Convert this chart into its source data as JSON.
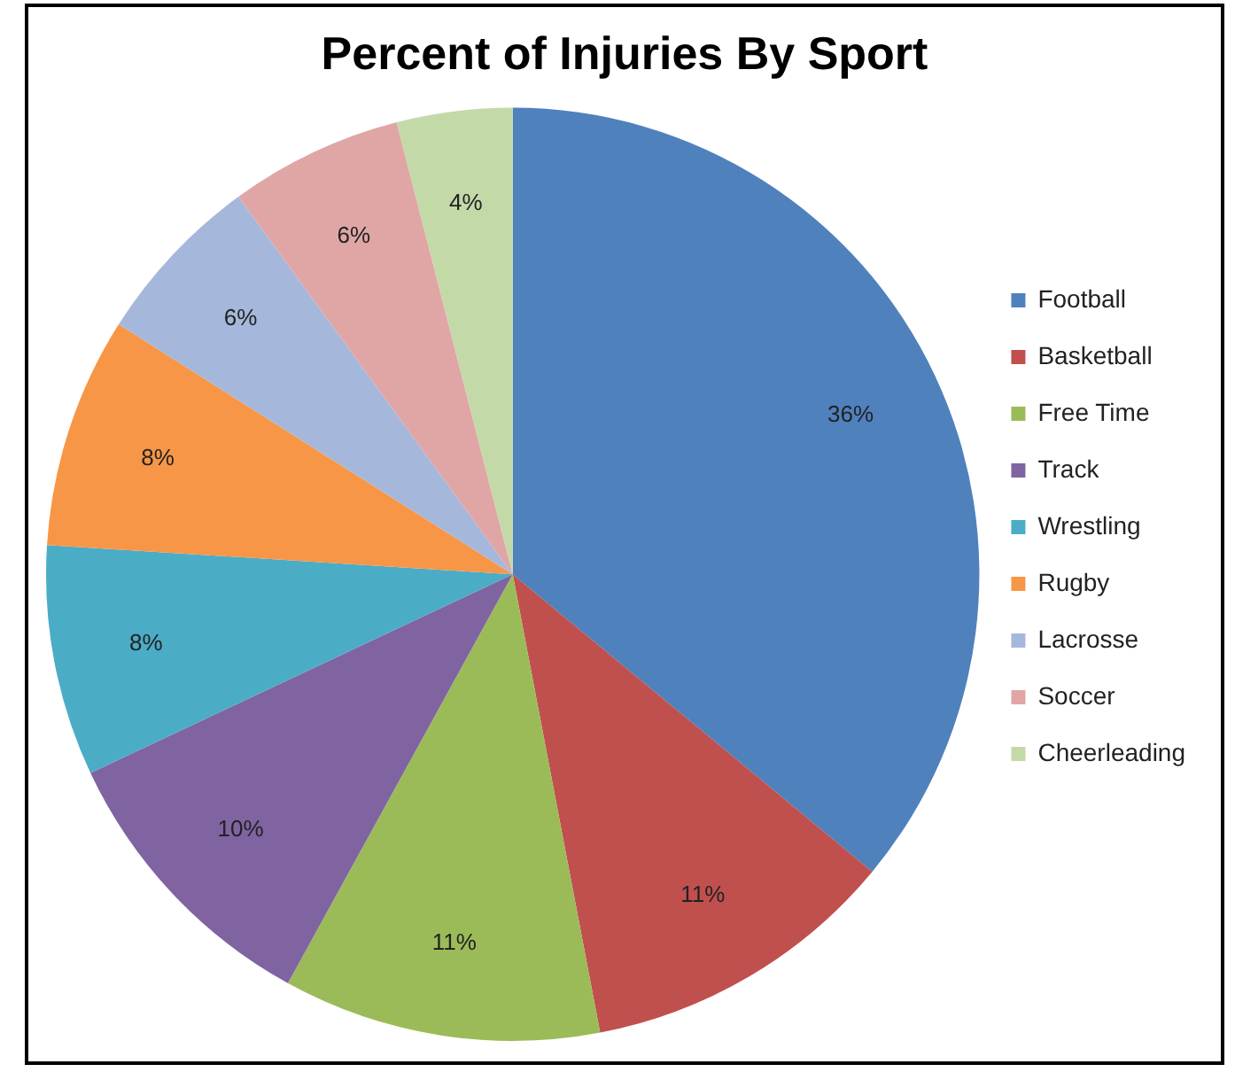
{
  "chart_data": {
    "type": "pie",
    "title": "Percent of Injuries By Sport",
    "categories": [
      "Football",
      "Basketball",
      "Free Time",
      "Track",
      "Wrestling",
      "Rugby",
      "Lacrosse",
      "Soccer",
      "Cheerleading"
    ],
    "values": [
      36,
      11,
      11,
      10,
      8,
      8,
      6,
      6,
      4
    ],
    "colors": [
      "#4f81bd",
      "#c0504d",
      "#9bbb59",
      "#8064a2",
      "#4bacc6",
      "#f79646",
      "#a5b8dc",
      "#e0a6a6",
      "#c4d9a8"
    ],
    "value_labels": [
      "36%",
      "11%",
      "11%",
      "10%",
      "8%",
      "8%",
      "6%",
      "6%",
      "4%"
    ],
    "legend": "right"
  }
}
